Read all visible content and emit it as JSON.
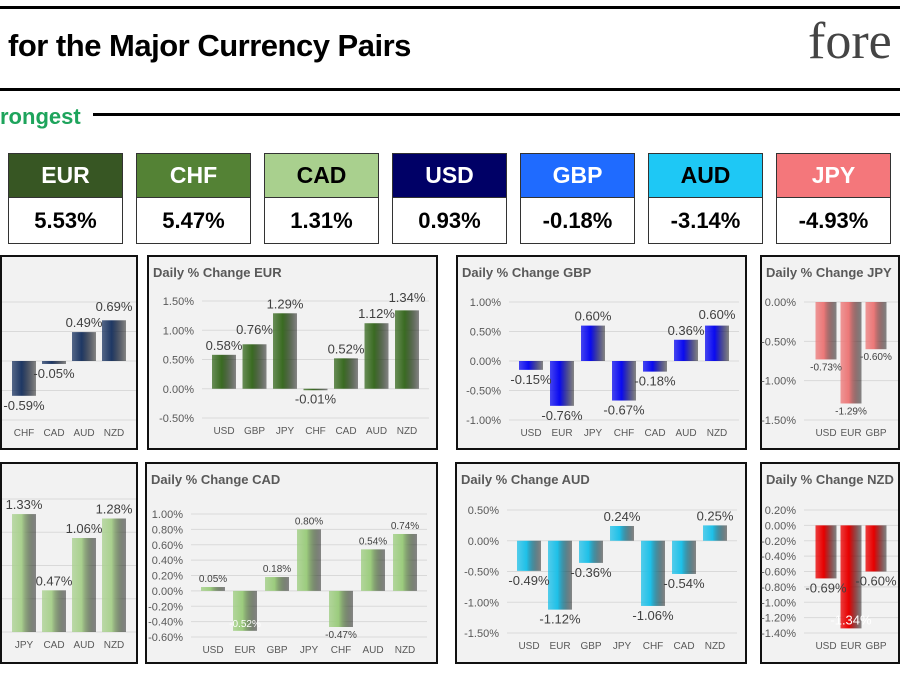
{
  "header": {
    "title": "for the Major Currency Pairs",
    "logo": "fore",
    "section_label": "rongest"
  },
  "ranking": [
    {
      "currency": "EUR",
      "change": "5.53%",
      "bg": "#375623",
      "fg": "#ffffff"
    },
    {
      "currency": "CHF",
      "change": "5.47%",
      "bg": "#548235",
      "fg": "#ffffff"
    },
    {
      "currency": "CAD",
      "change": "1.31%",
      "bg": "#a9d08e",
      "fg": "#000000"
    },
    {
      "currency": "USD",
      "change": "0.93%",
      "bg": "#000066",
      "fg": "#ffffff"
    },
    {
      "currency": "GBP",
      "change": "-0.18%",
      "bg": "#1f6bff",
      "fg": "#ffffff"
    },
    {
      "currency": "AUD",
      "change": "-3.14%",
      "bg": "#1ec8f5",
      "fg": "#000000"
    },
    {
      "currency": "JPY",
      "change": "-4.93%",
      "bg": "#f4777b",
      "fg": "#ffffff"
    }
  ],
  "chart_data": [
    {
      "type": "bar",
      "title": "",
      "categories": [
        "CHF",
        "CAD",
        "AUD",
        "NZD"
      ],
      "values": [
        -0.59,
        -0.05,
        0.49,
        0.69
      ],
      "labels": [
        "-0.59%",
        "-0.05%",
        "0.49%",
        "0.69%"
      ],
      "ylim": [
        -1.0,
        1.0
      ],
      "ticks": [],
      "color": "#1f3864",
      "grid": true
    },
    {
      "type": "bar",
      "title": "Daily % Change EUR",
      "categories": [
        "USD",
        "GBP",
        "JPY",
        "CHF",
        "CAD",
        "AUD",
        "NZD"
      ],
      "values": [
        0.58,
        0.76,
        1.29,
        -0.01,
        0.52,
        1.12,
        1.34
      ],
      "labels": [
        "0.58%",
        "0.76%",
        "1.29%",
        "-0.01%",
        "0.52%",
        "1.12%",
        "1.34%"
      ],
      "ylim": [
        -0.5,
        1.5
      ],
      "ticks": [
        "1.50%",
        "1.00%",
        "0.50%",
        "0.00%",
        "-0.50%"
      ],
      "color": "#3a6b22",
      "grid": true
    },
    {
      "type": "bar",
      "title": "Daily % Change GBP",
      "categories": [
        "USD",
        "EUR",
        "JPY",
        "CHF",
        "CAD",
        "AUD",
        "NZD"
      ],
      "values": [
        -0.15,
        -0.76,
        0.6,
        -0.67,
        -0.18,
        0.36,
        0.6
      ],
      "labels": [
        "-0.15%",
        "-0.76%",
        "0.60%",
        "-0.67%",
        "-0.18%",
        "0.36%",
        "0.60%"
      ],
      "ylim": [
        -1.0,
        1.0
      ],
      "ticks": [
        "1.00%",
        "0.50%",
        "0.00%",
        "-0.50%",
        "-1.00%"
      ],
      "color": "#0a0af0",
      "grid": true
    },
    {
      "type": "bar",
      "title": "Daily % Change JPY",
      "categories": [
        "USD",
        "EUR",
        "GBP"
      ],
      "values": [
        -0.73,
        -1.29,
        -0.6
      ],
      "labels": [
        "-0.73%",
        "-1.29%",
        "-0.60%"
      ],
      "ylim": [
        -1.5,
        0.0
      ],
      "ticks": [
        "0.00%",
        "-0.50%",
        "-1.00%",
        "-1.50%"
      ],
      "color": "#ec7878",
      "grid": true
    },
    {
      "type": "bar",
      "title": "",
      "categories": [
        "JPY",
        "CAD",
        "AUD",
        "NZD"
      ],
      "values": [
        1.33,
        0.47,
        1.06,
        1.28
      ],
      "labels": [
        "1.33%",
        "0.47%",
        "1.06%",
        "1.28%"
      ],
      "ylim": [
        0.0,
        1.5
      ],
      "ticks": [],
      "color": "#a9d08e",
      "grid": true
    },
    {
      "type": "bar",
      "title": "Daily % Change CAD",
      "categories": [
        "USD",
        "EUR",
        "GBP",
        "JPY",
        "CHF",
        "AUD",
        "NZD"
      ],
      "values": [
        0.05,
        -0.52,
        0.18,
        0.8,
        -0.47,
        0.54,
        0.74
      ],
      "labels": [
        "0.05%",
        "-0.52%",
        "0.18%",
        "0.80%",
        "-0.47%",
        "0.54%",
        "0.74%"
      ],
      "ylim": [
        -0.6,
        1.0
      ],
      "ticks": [
        "1.00%",
        "0.80%",
        "0.60%",
        "0.40%",
        "0.20%",
        "0.00%",
        "-0.20%",
        "-0.40%",
        "-0.60%"
      ],
      "color": "#9ccc7e",
      "grid": true
    },
    {
      "type": "bar",
      "title": "Daily % Change AUD",
      "categories": [
        "USD",
        "EUR",
        "GBP",
        "JPY",
        "CHF",
        "CAD",
        "NZD"
      ],
      "values": [
        -0.49,
        -1.12,
        -0.36,
        0.24,
        -1.06,
        -0.54,
        0.25
      ],
      "labels": [
        "-0.49%",
        "-1.12%",
        "-0.36%",
        "0.24%",
        "-1.06%",
        "-0.54%",
        "0.25%"
      ],
      "ylim": [
        -1.5,
        0.5
      ],
      "ticks": [
        "0.50%",
        "0.00%",
        "-0.50%",
        "-1.00%",
        "-1.50%"
      ],
      "color": "#1ec0e8",
      "grid": true
    },
    {
      "type": "bar",
      "title": "Daily % Change NZD",
      "categories": [
        "USD",
        "EUR",
        "GBP"
      ],
      "values": [
        -0.69,
        -1.34,
        -0.6
      ],
      "labels": [
        "-0.69%",
        "-1.34%",
        "-0.60%"
      ],
      "ylim": [
        -1.4,
        0.2
      ],
      "ticks": [
        "0.20%",
        "0.00%",
        "-0.20%",
        "-0.40%",
        "-0.60%",
        "-0.80%",
        "-1.00%",
        "-1.20%",
        "-1.40%"
      ],
      "color": "#e80000",
      "grid": true
    }
  ]
}
